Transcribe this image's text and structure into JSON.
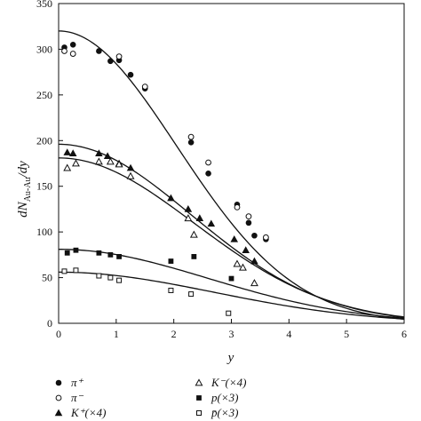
{
  "chart_data": {
    "type": "scatter",
    "xlabel": "y",
    "ylabel": "dN",
    "ylabel_sub": "Au-Au",
    "ylabel_tail": "/dy",
    "xlim": [
      0,
      6
    ],
    "ylim": [
      0,
      350
    ],
    "x_ticks": [
      0,
      1,
      2,
      3,
      4,
      5,
      6
    ],
    "y_ticks": [
      0,
      50,
      100,
      150,
      200,
      250,
      300,
      350
    ],
    "grid": false,
    "legend_position": "bottom",
    "series": [
      {
        "name": "π⁺",
        "marker": "filled-circle",
        "x": [
          0.1,
          0.25,
          0.7,
          0.9,
          1.05,
          1.25,
          1.5,
          2.3,
          2.6,
          3.1,
          3.3,
          3.4,
          3.6
        ],
        "y": [
          302,
          305,
          298,
          287,
          288,
          272,
          257,
          198,
          164,
          130,
          110,
          96,
          92
        ]
      },
      {
        "name": "π⁻",
        "marker": "open-circle",
        "x": [
          0.1,
          0.25,
          1.05,
          1.5,
          2.3,
          2.6,
          3.1,
          3.3,
          3.6
        ],
        "y": [
          298,
          295,
          292,
          259,
          204,
          176,
          127,
          117,
          94
        ]
      },
      {
        "name": "K⁺(×4)",
        "marker": "filled-triangle",
        "x": [
          0.15,
          0.25,
          0.7,
          0.85,
          1.05,
          1.25,
          1.95,
          2.25,
          2.45,
          2.65,
          3.05,
          3.25,
          3.4
        ],
        "y": [
          187,
          186,
          186,
          183,
          175,
          170,
          137,
          125,
          115,
          109,
          92,
          80,
          68
        ]
      },
      {
        "name": "K⁻(×4)",
        "marker": "open-triangle",
        "x": [
          0.15,
          0.3,
          0.7,
          0.9,
          1.05,
          1.25,
          2.25,
          2.35,
          3.1,
          3.2,
          3.4
        ],
        "y": [
          170,
          175,
          177,
          177,
          174,
          161,
          115,
          97,
          65,
          61,
          44
        ]
      },
      {
        "name": "p(×3)",
        "marker": "filled-square",
        "x": [
          0.15,
          0.3,
          0.7,
          0.9,
          1.05,
          1.95,
          2.35,
          3.0
        ],
        "y": [
          77,
          80,
          77,
          75,
          73,
          68,
          73,
          49
        ]
      },
      {
        "name": "p̄(×3)",
        "marker": "open-square",
        "x": [
          0.1,
          0.3,
          0.7,
          0.9,
          1.05,
          1.95,
          2.3,
          2.95
        ],
        "y": [
          57,
          58,
          52,
          50,
          47,
          36,
          32,
          11
        ]
      }
    ],
    "fit_curves": [
      {
        "amplitude": 320,
        "width": 2.05
      },
      {
        "amplitude": 196,
        "width": 2.3
      },
      {
        "amplitude": 181,
        "width": 2.35
      },
      {
        "amplitude": 81,
        "width": 2.6
      },
      {
        "amplitude": 56,
        "width": 2.7
      }
    ]
  }
}
